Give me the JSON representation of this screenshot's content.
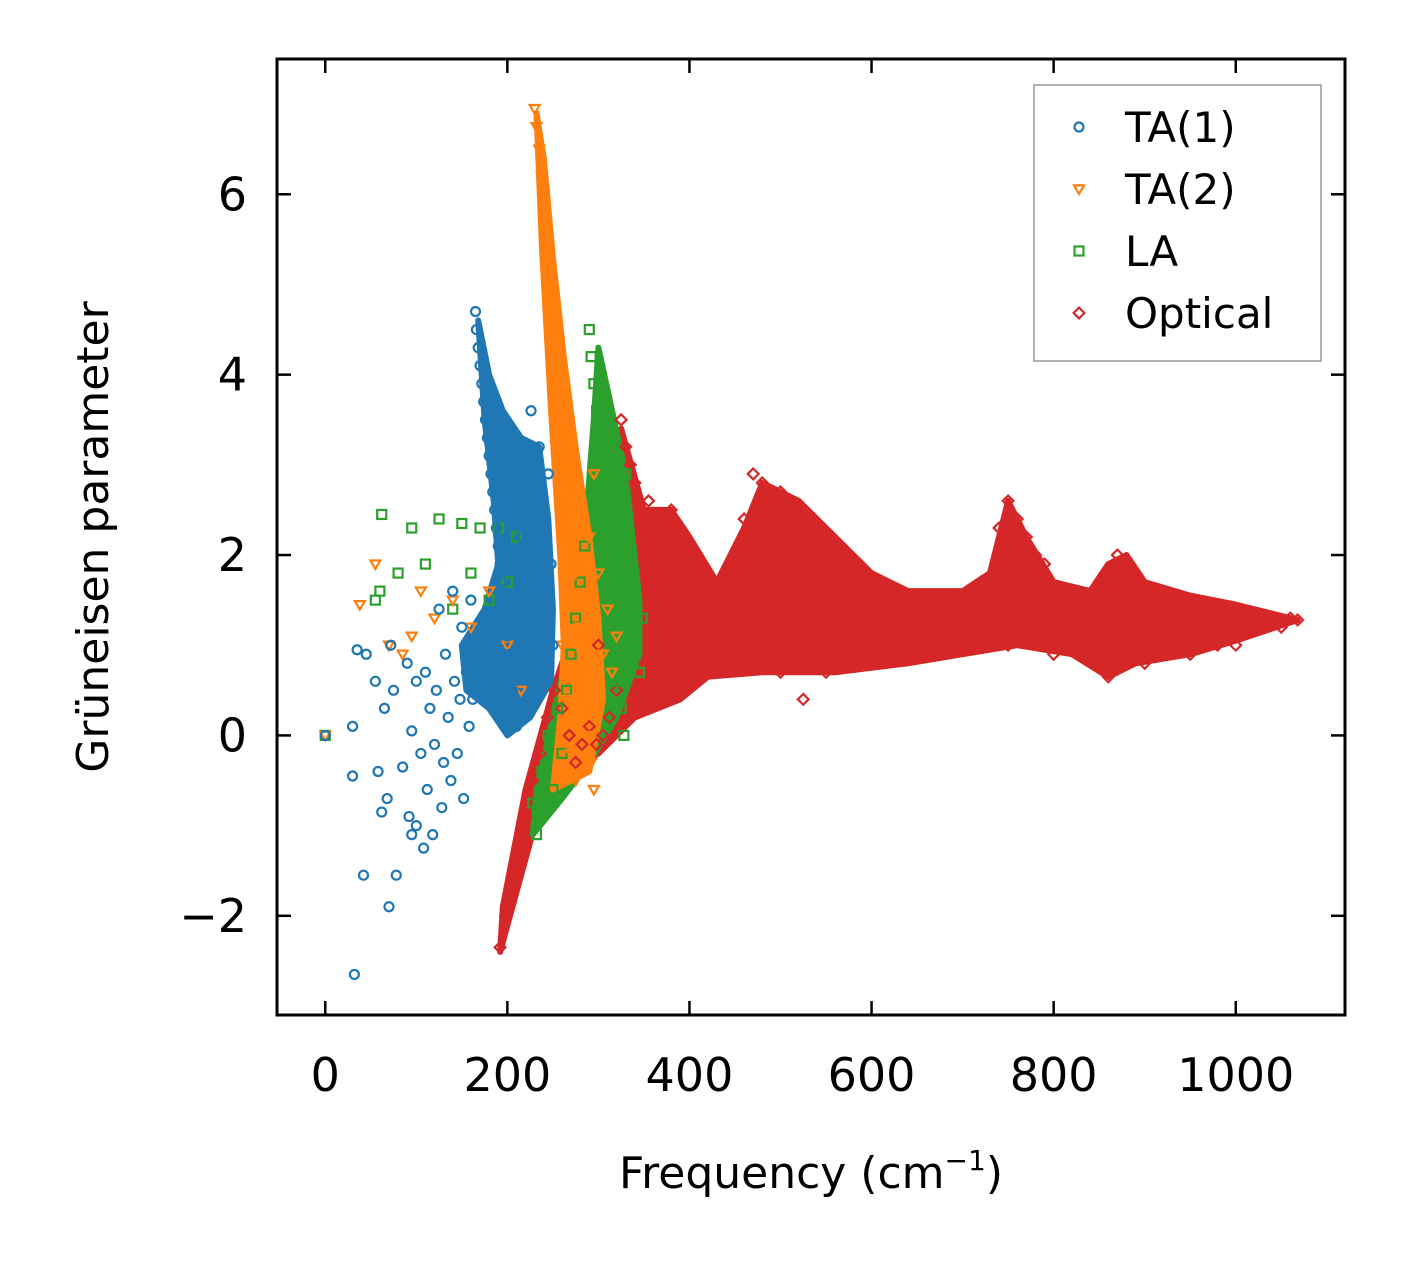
{
  "chart_data": {
    "type": "scatter",
    "title": "",
    "xlabel": "Frequency (cm",
    "xlabel_sup": "−1",
    "xlabel_close": ")",
    "ylabel": "Grüneisen parameter",
    "xlim": [
      -53,
      1120
    ],
    "ylim": [
      -3.1,
      7.5
    ],
    "xticks": [
      0,
      200,
      400,
      600,
      800,
      1000
    ],
    "xtick_labels": [
      "0",
      "200",
      "400",
      "600",
      "800",
      "1000"
    ],
    "yticks": [
      -2,
      0,
      2,
      4,
      6
    ],
    "ytick_labels": [
      "−2",
      "0",
      "2",
      "4",
      "6"
    ],
    "grid": false,
    "legend_position": "top-right",
    "series": [
      {
        "name": "TA(1)",
        "color": "#1f77b4",
        "marker": "circle",
        "points": [
          [
            0,
            0
          ],
          [
            32,
            -2.65
          ],
          [
            30,
            -0.45
          ],
          [
            30,
            0.1
          ],
          [
            35,
            0.95
          ],
          [
            42,
            -1.55
          ],
          [
            45,
            0.9
          ],
          [
            55,
            0.6
          ],
          [
            58,
            -0.4
          ],
          [
            62,
            -0.85
          ],
          [
            65,
            0.3
          ],
          [
            68,
            -0.7
          ],
          [
            70,
            -1.9
          ],
          [
            72,
            1.0
          ],
          [
            75,
            0.5
          ],
          [
            78,
            -1.55
          ],
          [
            85,
            -0.35
          ],
          [
            90,
            0.8
          ],
          [
            92,
            -0.9
          ],
          [
            95,
            -1.1
          ],
          [
            95,
            0.05
          ],
          [
            100,
            0.6
          ],
          [
            100,
            -1.0
          ],
          [
            105,
            -0.2
          ],
          [
            108,
            -1.25
          ],
          [
            110,
            0.7
          ],
          [
            112,
            -0.6
          ],
          [
            115,
            0.3
          ],
          [
            118,
            -1.1
          ],
          [
            120,
            -0.1
          ],
          [
            122,
            0.5
          ],
          [
            125,
            1.4
          ],
          [
            128,
            -0.8
          ],
          [
            130,
            -0.3
          ],
          [
            132,
            0.9
          ],
          [
            135,
            0.2
          ],
          [
            138,
            -0.5
          ],
          [
            140,
            1.6
          ],
          [
            142,
            0.6
          ],
          [
            145,
            -0.2
          ],
          [
            148,
            0.4
          ],
          [
            150,
            1.2
          ],
          [
            152,
            -0.7
          ],
          [
            155,
            0.7
          ],
          [
            158,
            0.1
          ],
          [
            160,
            1.5
          ],
          [
            162,
            0.4
          ],
          [
            165,
            4.7
          ],
          [
            166,
            4.5
          ],
          [
            168,
            4.3
          ],
          [
            170,
            4.1
          ],
          [
            172,
            3.9
          ],
          [
            174,
            3.7
          ],
          [
            176,
            3.5
          ],
          [
            178,
            3.3
          ],
          [
            180,
            3.1
          ],
          [
            182,
            2.9
          ],
          [
            184,
            2.7
          ],
          [
            186,
            2.5
          ],
          [
            188,
            2.3
          ],
          [
            190,
            2.1
          ],
          [
            192,
            1.9
          ],
          [
            194,
            1.7
          ],
          [
            196,
            1.5
          ],
          [
            198,
            1.3
          ],
          [
            200,
            1.1
          ],
          [
            202,
            0.9
          ],
          [
            204,
            0.7
          ],
          [
            206,
            0.5
          ],
          [
            208,
            0.3
          ],
          [
            210,
            0.1
          ],
          [
            212,
            3.0
          ],
          [
            214,
            2.6
          ],
          [
            216,
            2.2
          ],
          [
            218,
            1.8
          ],
          [
            220,
            1.4
          ],
          [
            222,
            1.0
          ],
          [
            224,
            0.6
          ],
          [
            226,
            3.6
          ],
          [
            228,
            2.8
          ],
          [
            230,
            2.0
          ],
          [
            232,
            1.2
          ],
          [
            235,
            3.2
          ],
          [
            238,
            2.4
          ],
          [
            240,
            1.6
          ],
          [
            242,
            0.8
          ],
          [
            245,
            2.9
          ],
          [
            248,
            1.9
          ],
          [
            250,
            1.0
          ]
        ]
      },
      {
        "name": "TA(2)",
        "color": "#ff7f0e",
        "marker": "triangle-down",
        "points": [
          [
            0,
            0
          ],
          [
            38,
            1.45
          ],
          [
            55,
            1.9
          ],
          [
            70,
            1.0
          ],
          [
            85,
            0.9
          ],
          [
            95,
            1.1
          ],
          [
            105,
            1.6
          ],
          [
            120,
            1.3
          ],
          [
            140,
            1.5
          ],
          [
            160,
            1.2
          ],
          [
            180,
            1.6
          ],
          [
            200,
            1.0
          ],
          [
            215,
            0.5
          ],
          [
            230,
            6.95
          ],
          [
            232,
            6.75
          ],
          [
            235,
            6.5
          ],
          [
            238,
            6.2
          ],
          [
            240,
            6.0
          ],
          [
            242,
            5.7
          ],
          [
            245,
            5.4
          ],
          [
            248,
            5.1
          ],
          [
            250,
            4.8
          ],
          [
            252,
            4.5
          ],
          [
            255,
            4.2
          ],
          [
            258,
            3.9
          ],
          [
            260,
            3.6
          ],
          [
            262,
            3.3
          ],
          [
            265,
            3.0
          ],
          [
            268,
            2.7
          ],
          [
            270,
            2.4
          ],
          [
            272,
            2.1
          ],
          [
            275,
            1.8
          ],
          [
            278,
            1.5
          ],
          [
            280,
            1.2
          ],
          [
            282,
            0.9
          ],
          [
            285,
            0.6
          ],
          [
            288,
            0.3
          ],
          [
            290,
            0.0
          ],
          [
            292,
            -0.3
          ],
          [
            295,
            -0.6
          ],
          [
            260,
            1.0
          ],
          [
            265,
            0.4
          ],
          [
            270,
            -0.2
          ],
          [
            275,
            -0.5
          ],
          [
            280,
            0.2
          ],
          [
            285,
            1.5
          ],
          [
            290,
            2.2
          ],
          [
            295,
            2.9
          ],
          [
            300,
            1.8
          ],
          [
            305,
            0.9
          ],
          [
            310,
            1.4
          ],
          [
            315,
            0.7
          ],
          [
            320,
            1.1
          ]
        ]
      },
      {
        "name": "LA",
        "color": "#2ca02c",
        "marker": "square",
        "points": [
          [
            0,
            0
          ],
          [
            62,
            2.45
          ],
          [
            55,
            1.5
          ],
          [
            60,
            1.6
          ],
          [
            80,
            1.8
          ],
          [
            95,
            2.3
          ],
          [
            110,
            1.9
          ],
          [
            125,
            2.4
          ],
          [
            140,
            1.4
          ],
          [
            150,
            2.35
          ],
          [
            160,
            1.8
          ],
          [
            170,
            2.3
          ],
          [
            180,
            1.5
          ],
          [
            190,
            2.3
          ],
          [
            200,
            1.7
          ],
          [
            210,
            2.2
          ],
          [
            228,
            -0.75
          ],
          [
            232,
            -1.1
          ],
          [
            238,
            -0.4
          ],
          [
            245,
            0.0
          ],
          [
            250,
            -0.6
          ],
          [
            255,
            0.3
          ],
          [
            260,
            -0.2
          ],
          [
            265,
            0.5
          ],
          [
            270,
            0.9
          ],
          [
            275,
            1.3
          ],
          [
            280,
            1.7
          ],
          [
            285,
            2.1
          ],
          [
            290,
            4.5
          ],
          [
            292,
            4.2
          ],
          [
            295,
            3.9
          ],
          [
            298,
            3.6
          ],
          [
            300,
            3.3
          ],
          [
            302,
            3.0
          ],
          [
            305,
            2.7
          ],
          [
            308,
            2.4
          ],
          [
            310,
            2.1
          ],
          [
            312,
            1.8
          ],
          [
            315,
            1.5
          ],
          [
            318,
            1.2
          ],
          [
            320,
            0.9
          ],
          [
            322,
            0.6
          ],
          [
            325,
            0.3
          ],
          [
            328,
            0.0
          ],
          [
            330,
            2.9
          ],
          [
            335,
            1.4
          ],
          [
            338,
            0.8
          ],
          [
            342,
            1.1
          ],
          [
            345,
            0.7
          ],
          [
            348,
            1.3
          ]
        ]
      },
      {
        "name": "Optical",
        "color": "#d62728",
        "marker": "diamond",
        "points": [
          [
            192,
            -2.35
          ],
          [
            198,
            -2.0
          ],
          [
            205,
            -1.6
          ],
          [
            212,
            -1.3
          ],
          [
            220,
            -0.9
          ],
          [
            228,
            -0.5
          ],
          [
            236,
            -0.2
          ],
          [
            244,
            0.2
          ],
          [
            252,
            0.5
          ],
          [
            260,
            0.3
          ],
          [
            268,
            0.0
          ],
          [
            275,
            -0.3
          ],
          [
            282,
            -0.1
          ],
          [
            290,
            0.1
          ],
          [
            298,
            -0.1
          ],
          [
            305,
            0.0
          ],
          [
            312,
            0.2
          ],
          [
            320,
            0.5
          ],
          [
            325,
            3.5
          ],
          [
            330,
            3.2
          ],
          [
            335,
            3.0
          ],
          [
            340,
            2.8
          ],
          [
            345,
            2.5
          ],
          [
            350,
            2.3
          ],
          [
            355,
            2.6
          ],
          [
            360,
            2.4
          ],
          [
            370,
            2.1
          ],
          [
            380,
            2.5
          ],
          [
            390,
            2.3
          ],
          [
            400,
            2.0
          ],
          [
            410,
            1.9
          ],
          [
            420,
            1.7
          ],
          [
            430,
            1.6
          ],
          [
            440,
            1.4
          ],
          [
            450,
            1.7
          ],
          [
            460,
            2.4
          ],
          [
            470,
            2.9
          ],
          [
            480,
            2.8
          ],
          [
            490,
            2.6
          ],
          [
            500,
            2.7
          ],
          [
            510,
            2.6
          ],
          [
            520,
            2.5
          ],
          [
            525,
            0.4
          ],
          [
            530,
            2.4
          ],
          [
            540,
            2.3
          ],
          [
            550,
            2.2
          ],
          [
            560,
            2.1
          ],
          [
            570,
            2.0
          ],
          [
            580,
            1.9
          ],
          [
            590,
            1.8
          ],
          [
            600,
            1.7
          ],
          [
            620,
            1.6
          ],
          [
            640,
            1.5
          ],
          [
            660,
            1.5
          ],
          [
            680,
            1.4
          ],
          [
            700,
            1.5
          ],
          [
            720,
            1.7
          ],
          [
            740,
            2.3
          ],
          [
            750,
            2.6
          ],
          [
            760,
            2.4
          ],
          [
            770,
            2.2
          ],
          [
            780,
            2.0
          ],
          [
            790,
            1.9
          ],
          [
            800,
            1.6
          ],
          [
            810,
            1.5
          ],
          [
            820,
            1.4
          ],
          [
            830,
            1.3
          ],
          [
            840,
            1.4
          ],
          [
            850,
            1.5
          ],
          [
            860,
            1.8
          ],
          [
            870,
            2.0
          ],
          [
            880,
            1.9
          ],
          [
            890,
            1.7
          ],
          [
            900,
            1.6
          ],
          [
            920,
            1.5
          ],
          [
            940,
            1.4
          ],
          [
            960,
            1.4
          ],
          [
            980,
            1.3
          ],
          [
            1000,
            1.3
          ],
          [
            1020,
            1.3
          ],
          [
            1040,
            1.3
          ],
          [
            1060,
            1.3
          ],
          [
            1068,
            1.28
          ],
          [
            300,
            1.0
          ],
          [
            350,
            0.8
          ],
          [
            400,
            0.7
          ],
          [
            450,
            0.8
          ],
          [
            500,
            0.7
          ],
          [
            550,
            0.7
          ],
          [
            600,
            0.8
          ],
          [
            650,
            0.9
          ],
          [
            700,
            1.0
          ],
          [
            750,
            1.0
          ],
          [
            800,
            0.9
          ],
          [
            850,
            0.8
          ],
          [
            860,
            0.65
          ],
          [
            900,
            0.8
          ],
          [
            950,
            0.9
          ],
          [
            1000,
            1.0
          ],
          [
            1050,
            1.2
          ],
          [
            360,
            1.3
          ],
          [
            420,
            1.2
          ],
          [
            480,
            1.4
          ],
          [
            540,
            1.3
          ],
          [
            620,
            1.2
          ],
          [
            680,
            1.3
          ],
          [
            760,
            1.4
          ],
          [
            820,
            1.2
          ],
          [
            880,
            1.1
          ],
          [
            940,
            1.2
          ],
          [
            640,
            0.9
          ],
          [
            470,
            0.9
          ],
          [
            380,
            1.6
          ],
          [
            560,
            1.1
          ],
          [
            720,
            1.1
          ],
          [
            780,
            1.3
          ],
          [
            840,
            1.0
          ],
          [
            920,
            1.0
          ],
          [
            980,
            1.0
          ]
        ]
      }
    ]
  }
}
